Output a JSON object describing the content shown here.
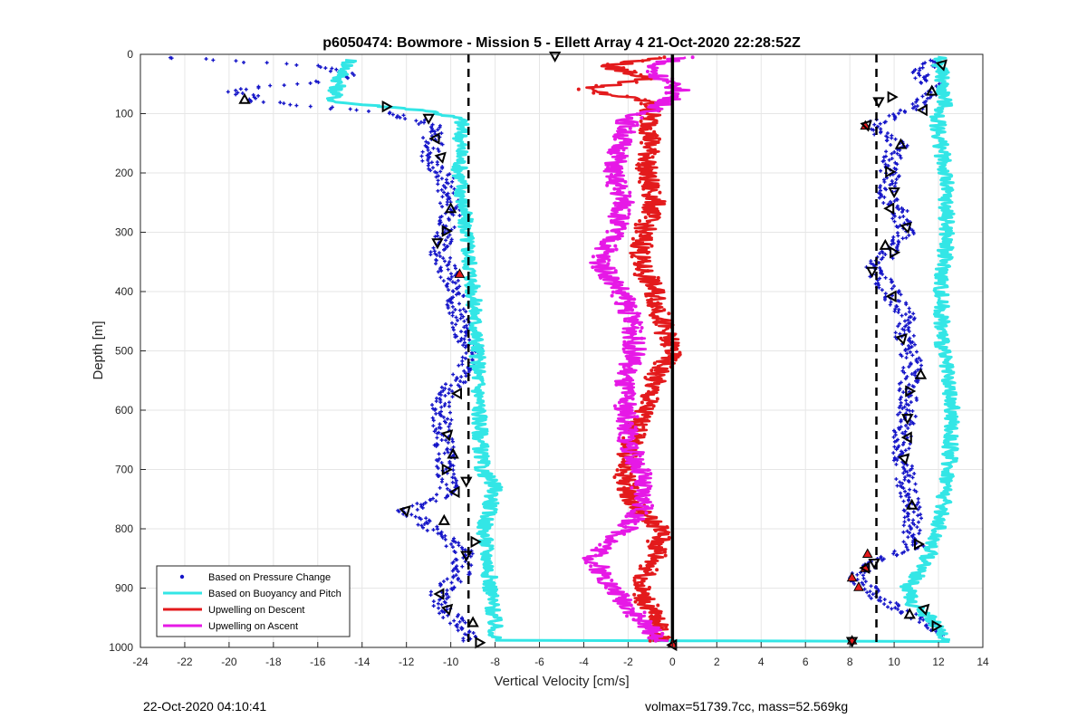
{
  "chart_data": {
    "type": "scatter",
    "title": "p6050474: Bowmore - Mission 5 - Ellett Array 4 21-Oct-2020 22:28:52Z",
    "xlabel": "Vertical Velocity [cm/s]",
    "ylabel": "Depth [m]",
    "xlim": [
      -24,
      14
    ],
    "ylim": [
      0,
      1000
    ],
    "y_reversed": true,
    "grid": true,
    "legend_position": "bottom-left",
    "x_ticks": [
      -24,
      -22,
      -20,
      -18,
      -16,
      -14,
      -12,
      -10,
      -8,
      -6,
      -4,
      -2,
      0,
      2,
      4,
      6,
      8,
      10,
      12,
      14
    ],
    "y_ticks": [
      0,
      100,
      200,
      300,
      400,
      500,
      600,
      700,
      800,
      900,
      1000
    ],
    "reference_lines": [
      {
        "x": -9.2,
        "style": "dashed",
        "color": "#000000"
      },
      {
        "x": 9.2,
        "style": "dashed",
        "color": "#000000"
      },
      {
        "x": 0,
        "style": "solid",
        "color": "#000000"
      }
    ],
    "series": [
      {
        "name": "Based on Pressure Change",
        "kind": "points",
        "color": "#1414c8",
        "segments": [
          {
            "depth": [
              5,
              20,
              40,
              60,
              80,
              100,
              120,
              150,
              180,
              210,
              240,
              270,
              300,
              330,
              360,
              400,
              440,
              480,
              500,
              540,
              580,
              620,
              660,
              700,
              740,
              770,
              800,
              840,
              880,
              910,
              940,
              970,
              990
            ],
            "values": [
              -23,
              -15.5,
              -14.5,
              -19.8,
              -18.5,
              -12.5,
              -10.8,
              -10.8,
              -10.9,
              -10.2,
              -10.1,
              -10,
              -10.2,
              -10.6,
              -10.2,
              -9.9,
              -9.6,
              -9.4,
              -8.9,
              -9.5,
              -10.4,
              -10.4,
              -10.3,
              -10.2,
              -10.1,
              -12,
              -10.8,
              -9.4,
              -9.6,
              -10.6,
              -10.2,
              -9.3,
              -9
            ]
          },
          {
            "depth": [
              10,
              30,
              60,
              90,
              120,
              150,
              180,
              210,
              240,
              270,
              300,
              330,
              360,
              400,
              440,
              480,
              520,
              560,
              600,
              640,
              680,
              720,
              760,
              800,
              830,
              860,
              880,
              900,
              920,
              940,
              960,
              980
            ],
            "values": [
              12,
              11,
              12,
              11,
              8.8,
              10.2,
              9.8,
              9.8,
              9.7,
              10.3,
              10.5,
              9.9,
              9.1,
              9.8,
              10.5,
              10.5,
              10.8,
              10.6,
              10.6,
              10.4,
              10.4,
              10.5,
              10.8,
              10.8,
              10.9,
              9,
              8.3,
              8.8,
              9.5,
              10.6,
              11.5,
              12
            ]
          }
        ]
      },
      {
        "name": "Based on Buoyancy and Pitch",
        "kind": "line",
        "color": "#33e6e6",
        "segments": [
          {
            "depth": [
              10,
              40,
              80,
              95,
              110,
              200,
              300,
              400,
              500,
              600,
              700,
              730,
              760,
              800,
              860,
              900,
              940,
              975,
              988
            ],
            "values": [
              -14.5,
              -15,
              -15.3,
              -11,
              -9.5,
              -9.6,
              -9.3,
              -9,
              -8.8,
              -8.7,
              -8.6,
              -8,
              -8.2,
              -8.5,
              -8.3,
              -8.2,
              -8.1,
              -8,
              -8
            ]
          },
          {
            "depth": [
              988,
              990
            ],
            "values": [
              -8,
              12.5
            ]
          },
          {
            "depth": [
              5,
              50,
              90,
              100,
              200,
              300,
              400,
              500,
              600,
              700,
              800,
              860,
              900,
              930,
              950,
              975,
              988
            ],
            "values": [
              12,
              12.2,
              12.3,
              11.9,
              12.3,
              12.4,
              12.1,
              12.2,
              12.6,
              12.5,
              12,
              11.4,
              10.6,
              10.9,
              11.6,
              12.1,
              12.5
            ]
          }
        ]
      },
      {
        "name": "Upwelling on Descent",
        "kind": "line",
        "color": "#e31a1c",
        "segments": [
          {
            "depth": [
              5,
              20,
              40,
              60,
              80,
              110,
              150,
              200,
              250,
              300,
              350,
              400,
              450,
              500,
              540,
              600,
              650,
              700,
              760,
              800,
              850,
              900,
              950,
              990
            ],
            "values": [
              -0.5,
              -3,
              -1,
              -4,
              -1,
              -1,
              -1,
              -1.2,
              -0.8,
              -1.3,
              -1.5,
              -0.8,
              -0.5,
              0,
              -0.7,
              -1.3,
              -1.8,
              -2.2,
              -1.8,
              -0.5,
              -0.8,
              -1.5,
              -0.8,
              -0.5
            ]
          }
        ]
      },
      {
        "name": "Upwelling on Ascent",
        "kind": "line",
        "color": "#e619e6",
        "segments": [
          {
            "depth": [
              5,
              20,
              40,
              60,
              80,
              110,
              150,
              200,
              250,
              300,
              350,
              400,
              450,
              500,
              550,
              600,
              650,
              700,
              760,
              800,
              850,
              900,
              950,
              990
            ],
            "values": [
              0.5,
              -1,
              -0.5,
              0.3,
              -0.2,
              -2,
              -2.3,
              -2.7,
              -2.2,
              -2.6,
              -3.3,
              -2.3,
              -1.8,
              -1.7,
              -2.2,
              -2.1,
              -2,
              -1.5,
              -1.3,
              -2.1,
              -3.6,
              -2.7,
              -1.5,
              -0.5
            ]
          }
        ]
      }
    ],
    "triangle_markers": {
      "color_outline": "#000000",
      "points": [
        {
          "x": -19.3,
          "y": 76
        },
        {
          "x": -12.9,
          "y": 88
        },
        {
          "x": -11,
          "y": 108
        },
        {
          "x": -10.7,
          "y": 142
        },
        {
          "x": -10.4,
          "y": 172
        },
        {
          "x": -10,
          "y": 260
        },
        {
          "x": -10.2,
          "y": 298
        },
        {
          "x": -10.6,
          "y": 318
        },
        {
          "x": -9.7,
          "y": 572
        },
        {
          "x": -10.1,
          "y": 640
        },
        {
          "x": -9.9,
          "y": 674
        },
        {
          "x": -10.2,
          "y": 700
        },
        {
          "x": -9.3,
          "y": 720
        },
        {
          "x": -9.8,
          "y": 738
        },
        {
          "x": -12,
          "y": 768
        },
        {
          "x": -10.3,
          "y": 786
        },
        {
          "x": -8.9,
          "y": 822
        },
        {
          "x": -9.3,
          "y": 845
        },
        {
          "x": -10.5,
          "y": 910
        },
        {
          "x": -10.1,
          "y": 934
        },
        {
          "x": -9,
          "y": 958
        },
        {
          "x": -8.7,
          "y": 992
        },
        {
          "x": -5.3,
          "y": 3
        },
        {
          "x": 0,
          "y": 996
        },
        {
          "x": 12.2,
          "y": 16
        },
        {
          "x": 11.7,
          "y": 62
        },
        {
          "x": 9.9,
          "y": 72
        },
        {
          "x": 9.3,
          "y": 80
        },
        {
          "x": 11.3,
          "y": 94
        },
        {
          "x": 8.8,
          "y": 118
        },
        {
          "x": 10.3,
          "y": 152
        },
        {
          "x": 9.8,
          "y": 198
        },
        {
          "x": 10,
          "y": 232
        },
        {
          "x": 9.8,
          "y": 260
        },
        {
          "x": 10.6,
          "y": 290
        },
        {
          "x": 9.6,
          "y": 322
        },
        {
          "x": 10,
          "y": 334
        },
        {
          "x": 9,
          "y": 366
        },
        {
          "x": 9.9,
          "y": 408
        },
        {
          "x": 10.4,
          "y": 478
        },
        {
          "x": 11.2,
          "y": 540
        },
        {
          "x": 10.7,
          "y": 568
        },
        {
          "x": 10.6,
          "y": 614
        },
        {
          "x": 10.6,
          "y": 646
        },
        {
          "x": 10.5,
          "y": 680
        },
        {
          "x": 10.8,
          "y": 760
        },
        {
          "x": 11.1,
          "y": 826
        },
        {
          "x": 9.1,
          "y": 858
        },
        {
          "x": 8.7,
          "y": 866
        },
        {
          "x": 11.4,
          "y": 934
        },
        {
          "x": 10.7,
          "y": 944
        },
        {
          "x": 11.9,
          "y": 964
        },
        {
          "x": 8.1,
          "y": 990
        }
      ]
    },
    "red_markers": {
      "color": "#e31a1c",
      "points": [
        {
          "x": 8.7,
          "y": 120
        },
        {
          "x": 8.8,
          "y": 842
        },
        {
          "x": 8.7,
          "y": 866
        },
        {
          "x": 8.1,
          "y": 882
        },
        {
          "x": 8.4,
          "y": 898
        },
        {
          "x": 8.1,
          "y": 988
        },
        {
          "x": -9.6,
          "y": 370
        },
        {
          "x": 0,
          "y": 994
        }
      ]
    }
  },
  "footer": {
    "timestamp": "22-Oct-2020 04:10:41",
    "volume_mass": "volmax=51739.7cc, mass=52.569kg"
  }
}
